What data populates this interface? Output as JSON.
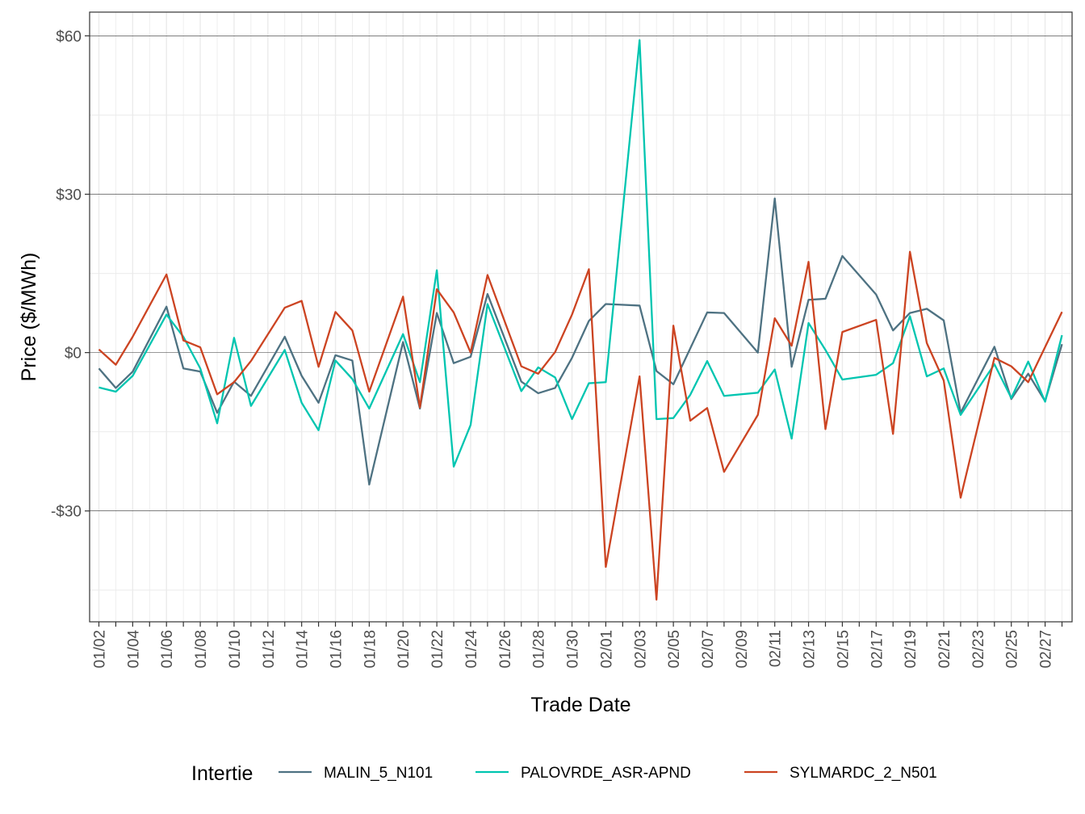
{
  "chart_data": {
    "type": "line",
    "xlabel": "Trade Date",
    "ylabel": "Price ($/MWh)",
    "ylim": [
      -51,
      64.5
    ],
    "y_ticks": [
      60,
      30,
      0,
      -30
    ],
    "y_tick_labels": [
      "$60",
      "$30",
      "$0",
      "-$30"
    ],
    "grid": true,
    "legend_title": "Intertie",
    "legend_position": "bottom",
    "x_tick_labels": [
      "01/02",
      "01/04",
      "01/06",
      "01/08",
      "01/10",
      "01/12",
      "01/14",
      "01/16",
      "01/18",
      "01/20",
      "01/22",
      "01/24",
      "01/26",
      "01/28",
      "01/30",
      "02/01",
      "02/03",
      "02/05",
      "02/07",
      "02/09",
      "02/11",
      "02/13",
      "02/15",
      "02/17",
      "02/19",
      "02/21",
      "02/23",
      "02/25",
      "02/27"
    ],
    "x": [
      "01/02",
      "01/03",
      "01/04",
      "01/05",
      "01/06",
      "01/07",
      "01/08",
      "01/09",
      "01/10",
      "01/11",
      "01/12",
      "01/13",
      "01/14",
      "01/15",
      "01/16",
      "01/17",
      "01/18",
      "01/19",
      "01/20",
      "01/21",
      "01/22",
      "01/23",
      "01/24",
      "01/25",
      "01/26",
      "01/27",
      "01/28",
      "01/29",
      "01/30",
      "01/31",
      "02/01",
      "02/02",
      "02/03",
      "02/04",
      "02/05",
      "02/06",
      "02/07",
      "02/08",
      "02/09",
      "02/10",
      "02/11",
      "02/12",
      "02/13",
      "02/14",
      "02/15",
      "02/16",
      "02/17",
      "02/18",
      "02/19",
      "02/20",
      "02/21",
      "02/22",
      "02/23",
      "02/24",
      "02/25",
      "02/26",
      "02/27",
      "02/28"
    ],
    "series": [
      {
        "name": "MALIN_5_N101",
        "color": "#4e7282",
        "values": [
          -3,
          -6.7,
          -3.6,
          null,
          8.7,
          -3,
          -3.6,
          -11.4,
          -5.5,
          -8.2,
          null,
          3,
          -4.4,
          -9.5,
          -0.5,
          -1.5,
          -25,
          null,
          2,
          -10.6,
          7.5,
          -2,
          -0.8,
          11.1,
          null,
          -5.5,
          -7.7,
          -6.7,
          -1,
          6,
          9.2,
          null,
          8.9,
          -3.5,
          -6,
          null,
          7.6,
          7.5,
          null,
          0,
          29.2,
          -2.7,
          10,
          10.2,
          18.3,
          null,
          11,
          4.2,
          7.5,
          8.3,
          6.1,
          -11.4,
          null,
          1.1,
          -8.8,
          -4,
          -9.2,
          1.6
        ]
      },
      {
        "name": "PALOVRDE_ASR-APND",
        "color": "#00c5b0",
        "values": [
          -6.6,
          -7.4,
          -4.4,
          null,
          7.2,
          3,
          -3,
          -13.4,
          2.8,
          -10.1,
          null,
          0.5,
          -9.5,
          -14.7,
          -1.5,
          -5,
          -10.6,
          null,
          3.5,
          -5.6,
          15.6,
          -21.6,
          -13.7,
          9.2,
          null,
          -7.3,
          -2.8,
          -4.7,
          -12.6,
          -5.8,
          -5.6,
          null,
          59.2,
          -12.6,
          -12.4,
          -8,
          -1.6,
          -8.2,
          null,
          -7.6,
          -3.2,
          -16.3,
          5.6,
          0.5,
          -5.1,
          null,
          -4.2,
          -2,
          6.9,
          -4.5,
          -3,
          -11.8,
          null,
          -2.2,
          -8.6,
          -1.7,
          -9.3,
          3.3
        ]
      },
      {
        "name": "SYLMARDC_2_N501",
        "color": "#cc4422",
        "values": [
          0.6,
          -2.3,
          3,
          null,
          14.8,
          2.3,
          1,
          -7.9,
          -5.6,
          -1.6,
          null,
          8.5,
          9.8,
          -2.7,
          7.7,
          4.2,
          -7.4,
          null,
          10.6,
          -10.4,
          12,
          7.6,
          0,
          14.7,
          null,
          -2.6,
          -4,
          0.1,
          7.2,
          15.8,
          -40.6,
          null,
          -4.5,
          -46.8,
          5.1,
          -12.9,
          -10.5,
          -22.6,
          null,
          -11.8,
          6.5,
          1.3,
          17.2,
          -14.5,
          3.9,
          null,
          6.2,
          -15.4,
          19.1,
          1.8,
          -5.3,
          -27.5,
          null,
          -1,
          -2.6,
          -5.6,
          null,
          7.7
        ]
      }
    ]
  }
}
